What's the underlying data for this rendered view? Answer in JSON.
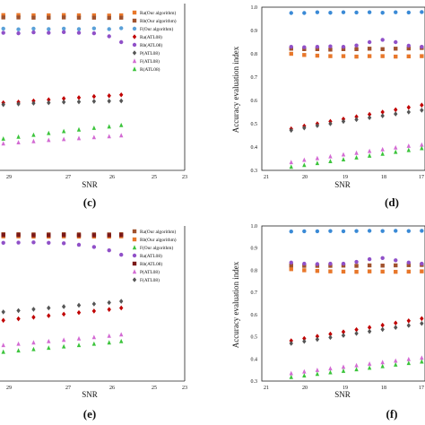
{
  "chart_data": [
    {
      "panel_label": "(c)",
      "type": "scatter",
      "xlabel": "SNR",
      "ylabel": "",
      "xtick_labels": [
        "29",
        "27",
        "26",
        "25",
        "23"
      ],
      "xlim": [
        30,
        23
      ],
      "ylim": [
        0.3,
        1.0
      ],
      "legend_position": "top-right",
      "series": [
        {
          "name": "Ra(Our algorithm)",
          "color": "#e8772a",
          "marker": "square",
          "x": [
            30,
            29.5,
            29,
            28.5,
            28,
            27.5,
            27,
            26.5,
            26,
            25.5,
            25.1
          ],
          "y": [
            0.965,
            0.965,
            0.966,
            0.966,
            0.965,
            0.965,
            0.966,
            0.965,
            0.965,
            0.964,
            0.965
          ]
        },
        {
          "name": "Rb(Our algorithm)",
          "color": "#a0522d",
          "marker": "square",
          "x": [
            30,
            29.5,
            29,
            28.5,
            28,
            27.5,
            27,
            26.5,
            26,
            25.5,
            25.1
          ],
          "y": [
            0.955,
            0.955,
            0.956,
            0.956,
            0.955,
            0.955,
            0.956,
            0.955,
            0.955,
            0.954,
            0.955
          ]
        },
        {
          "name": "F(Our algorithm)",
          "color": "#5aa0d8",
          "marker": "circle",
          "x": [
            30,
            29.5,
            29,
            28.5,
            28,
            27.5,
            27,
            26.5,
            26,
            25.5,
            25.1
          ],
          "y": [
            0.905,
            0.905,
            0.908,
            0.905,
            0.908,
            0.906,
            0.908,
            0.906,
            0.909,
            0.906,
            0.91
          ]
        },
        {
          "name": "Ra(ATL08)",
          "color": "#c00000",
          "marker": "diamond",
          "x": [
            30,
            29.5,
            29,
            28.5,
            28,
            27.5,
            27,
            26.5,
            26,
            25.5,
            25.1
          ],
          "y": [
            0.58,
            0.585,
            0.59,
            0.593,
            0.598,
            0.603,
            0.608,
            0.612,
            0.617,
            0.62,
            0.624
          ]
        },
        {
          "name": "Rb(ATL08)",
          "color": "#9050c8",
          "marker": "circle",
          "x": [
            30,
            29.5,
            29,
            28.5,
            28,
            27.5,
            27,
            26.5,
            26,
            25.5,
            25.1
          ],
          "y": [
            0.885,
            0.887,
            0.89,
            0.888,
            0.892,
            0.89,
            0.893,
            0.89,
            0.888,
            0.875,
            0.85
          ]
        },
        {
          "name": "P(ATL08)",
          "color": "#555555",
          "marker": "diamond",
          "x": [
            30,
            29.5,
            29,
            28.5,
            28,
            27.5,
            27,
            26.5,
            26,
            25.5,
            25.1
          ],
          "y": [
            0.575,
            0.578,
            0.582,
            0.585,
            0.588,
            0.59,
            0.593,
            0.594,
            0.596,
            0.597,
            0.598
          ]
        },
        {
          "name": "F(ATL08)",
          "color": "#d36bd3",
          "marker": "triangle",
          "x": [
            30,
            29.5,
            29,
            28.5,
            28,
            27.5,
            27,
            26.5,
            26,
            25.5,
            25.1
          ],
          "y": [
            0.405,
            0.41,
            0.415,
            0.42,
            0.425,
            0.43,
            0.434,
            0.438,
            0.442,
            0.446,
            0.45
          ]
        },
        {
          "name": "R(ATL08)",
          "color": "#3cc43c",
          "marker": "triangle",
          "x": [
            30,
            29.5,
            29,
            28.5,
            28,
            27.5,
            27,
            26.5,
            26,
            25.5,
            25.1
          ],
          "y": [
            0.42,
            0.428,
            0.436,
            0.444,
            0.452,
            0.46,
            0.468,
            0.475,
            0.482,
            0.488,
            0.494
          ]
        }
      ]
    },
    {
      "panel_label": "(d)",
      "type": "scatter",
      "xlabel": "SNR",
      "ylabel": "Accuracy evaluation index",
      "xtick_labels": [
        "21",
        "20",
        "19",
        "18",
        "17"
      ],
      "ytick_labels": [
        "1.0",
        "0.9",
        "0.8",
        "0.7",
        "0.6",
        "0.5",
        "0.4",
        "0.3"
      ],
      "xlim": [
        21.5,
        16.5
      ],
      "ylim": [
        0.3,
        1.0
      ],
      "legend_position": "",
      "series": [
        {
          "name": "",
          "color": "#3a8ad6",
          "marker": "circle",
          "x": [
            20.6,
            20.2,
            19.8,
            19.4,
            19.0,
            18.6,
            18.2,
            17.8,
            17.4,
            17.0,
            16.6
          ],
          "y": [
            0.975,
            0.975,
            0.978,
            0.976,
            0.978,
            0.977,
            0.978,
            0.976,
            0.978,
            0.977,
            0.979
          ]
        },
        {
          "name": "",
          "color": "#e8772a",
          "marker": "square",
          "x": [
            20.6,
            20.2,
            19.8,
            19.4,
            19.0,
            18.6,
            18.2,
            17.8,
            17.4,
            17.0,
            16.6
          ],
          "y": [
            0.8,
            0.795,
            0.792,
            0.79,
            0.79,
            0.788,
            0.79,
            0.79,
            0.788,
            0.789,
            0.79
          ]
        },
        {
          "name": "",
          "color": "#a0522d",
          "marker": "square",
          "x": [
            20.6,
            20.2,
            19.8,
            19.4,
            19.0,
            18.6,
            18.2,
            17.8,
            17.4,
            17.0,
            16.6
          ],
          "y": [
            0.822,
            0.82,
            0.82,
            0.818,
            0.82,
            0.82,
            0.822,
            0.82,
            0.822,
            0.823,
            0.825
          ]
        },
        {
          "name": "",
          "color": "#9050c8",
          "marker": "circle",
          "x": [
            20.6,
            20.2,
            19.8,
            19.4,
            19.0,
            18.6,
            18.2,
            17.8,
            17.4,
            17.0,
            16.6
          ],
          "y": [
            0.83,
            0.828,
            0.83,
            0.832,
            0.83,
            0.836,
            0.85,
            0.86,
            0.85,
            0.835,
            0.83
          ]
        },
        {
          "name": "",
          "color": "#c00000",
          "marker": "diamond",
          "x": [
            20.6,
            20.2,
            19.8,
            19.4,
            19.0,
            18.6,
            18.2,
            17.8,
            17.4,
            17.0,
            16.6
          ],
          "y": [
            0.478,
            0.49,
            0.5,
            0.51,
            0.52,
            0.53,
            0.54,
            0.55,
            0.56,
            0.57,
            0.58
          ]
        },
        {
          "name": "",
          "color": "#555555",
          "marker": "diamond",
          "x": [
            20.6,
            20.2,
            19.8,
            19.4,
            19.0,
            18.6,
            18.2,
            17.8,
            17.4,
            17.0,
            16.6
          ],
          "y": [
            0.472,
            0.482,
            0.492,
            0.5,
            0.51,
            0.518,
            0.526,
            0.534,
            0.542,
            0.55,
            0.558
          ]
        },
        {
          "name": "",
          "color": "#d36bd3",
          "marker": "triangle",
          "x": [
            20.6,
            20.2,
            19.8,
            19.4,
            19.0,
            18.6,
            18.2,
            17.8,
            17.4,
            17.0,
            16.6
          ],
          "y": [
            0.335,
            0.345,
            0.352,
            0.36,
            0.368,
            0.375,
            0.383,
            0.39,
            0.398,
            0.405,
            0.41
          ]
        },
        {
          "name": "",
          "color": "#3cc43c",
          "marker": "triangle",
          "x": [
            20.6,
            20.2,
            19.8,
            19.4,
            19.0,
            18.6,
            18.2,
            17.8,
            17.4,
            17.0,
            16.6
          ],
          "y": [
            0.315,
            0.323,
            0.331,
            0.339,
            0.347,
            0.355,
            0.363,
            0.371,
            0.379,
            0.387,
            0.395
          ]
        }
      ]
    },
    {
      "panel_label": "(e)",
      "type": "scatter",
      "xlabel": "SNR",
      "ylabel": "",
      "xtick_labels": [
        "29",
        "27",
        "26",
        "25",
        "23"
      ],
      "xlim": [
        30,
        23
      ],
      "ylim": [
        0.3,
        1.0
      ],
      "legend_position": "top-right",
      "series": [
        {
          "name": "Ra(Our algorithm)",
          "color": "#a0522d",
          "marker": "square",
          "x": [
            30,
            29.5,
            29,
            28.5,
            28,
            27.5,
            27,
            26.5,
            26,
            25.5,
            25.1
          ],
          "y": [
            0.962,
            0.962,
            0.963,
            0.963,
            0.962,
            0.962,
            0.963,
            0.962,
            0.962,
            0.962,
            0.963
          ]
        },
        {
          "name": "Rb(Our algorithm)",
          "color": "#e8772a",
          "marker": "square",
          "x": [
            30,
            29.5,
            29,
            28.5,
            28,
            27.5,
            27,
            26.5,
            26,
            25.5,
            25.1
          ],
          "y": [
            0.952,
            0.952,
            0.953,
            0.953,
            0.952,
            0.952,
            0.953,
            0.952,
            0.952,
            0.952,
            0.953
          ]
        },
        {
          "name": "F(Our algorithm)",
          "color": "#3cc43c",
          "marker": "triangle",
          "x": [
            30,
            29.5,
            29,
            28.5,
            28,
            27.5,
            27,
            26.5,
            26,
            25.5,
            25.1
          ],
          "y": [
            0.42,
            0.426,
            0.432,
            0.438,
            0.444,
            0.45,
            0.456,
            0.462,
            0.468,
            0.474,
            0.48
          ]
        },
        {
          "name": "Ra(ATL08)",
          "color": "#9050c8",
          "marker": "circle",
          "x": [
            30,
            29.5,
            29,
            28.5,
            28,
            27.5,
            27,
            26.5,
            26,
            25.5,
            25.1
          ],
          "y": [
            0.92,
            0.922,
            0.924,
            0.925,
            0.926,
            0.924,
            0.922,
            0.915,
            0.905,
            0.89,
            0.87
          ]
        },
        {
          "name": "Rb(ATL08)",
          "color": "#7a1818",
          "marker": "square",
          "x": [
            30,
            29.5,
            29,
            28.5,
            28,
            27.5,
            27,
            26.5,
            26,
            25.5,
            25.1
          ],
          "y": [
            0.958,
            0.958,
            0.959,
            0.959,
            0.958,
            0.958,
            0.959,
            0.958,
            0.958,
            0.958,
            0.959
          ]
        },
        {
          "name": "P(ATL08)",
          "color": "#d36bd3",
          "marker": "triangle",
          "x": [
            30,
            29.5,
            29,
            28.5,
            28,
            27.5,
            27,
            26.5,
            26,
            25.5,
            25.1
          ],
          "y": [
            0.45,
            0.456,
            0.462,
            0.468,
            0.474,
            0.48,
            0.486,
            0.492,
            0.498,
            0.504,
            0.51
          ]
        },
        {
          "name": "F(ATL08)",
          "color": "#555555",
          "marker": "diamond",
          "x": [
            30,
            29.5,
            29,
            28.5,
            28,
            27.5,
            27,
            26.5,
            26,
            25.5,
            25.1
          ],
          "y": [
            0.6,
            0.606,
            0.612,
            0.618,
            0.624,
            0.63,
            0.636,
            0.642,
            0.648,
            0.654,
            0.66
          ]
        },
        {
          "name": "",
          "color": "#c00000",
          "marker": "diamond",
          "x": [
            30,
            29.5,
            29,
            28.5,
            28,
            27.5,
            27,
            26.5,
            26,
            25.5,
            25.1
          ],
          "y": [
            0.56,
            0.567,
            0.574,
            0.581,
            0.588,
            0.595,
            0.602,
            0.609,
            0.616,
            0.623,
            0.63
          ]
        }
      ]
    },
    {
      "panel_label": "(f)",
      "type": "scatter",
      "xlabel": "SNR",
      "ylabel": "Accuracy evaluation index",
      "xtick_labels": [
        "21",
        "20",
        "19",
        "18",
        "17"
      ],
      "ytick_labels": [
        "1.0",
        "0.9",
        "0.8",
        "0.7",
        "0.6",
        "0.5",
        "0.4",
        "0.3"
      ],
      "xlim": [
        21.5,
        16.5
      ],
      "ylim": [
        0.3,
        1.0
      ],
      "legend_position": "",
      "series": [
        {
          "name": "",
          "color": "#3a8ad6",
          "marker": "circle",
          "x": [
            20.6,
            20.2,
            19.8,
            19.4,
            19.0,
            18.6,
            18.2,
            17.8,
            17.4,
            17.0,
            16.6
          ],
          "y": [
            0.975,
            0.976,
            0.976,
            0.977,
            0.976,
            0.977,
            0.978,
            0.977,
            0.978,
            0.977,
            0.978
          ]
        },
        {
          "name": "",
          "color": "#e8772a",
          "marker": "square",
          "x": [
            20.6,
            20.2,
            19.8,
            19.4,
            19.0,
            18.6,
            18.2,
            17.8,
            17.4,
            17.0,
            16.6
          ],
          "y": [
            0.805,
            0.8,
            0.797,
            0.795,
            0.794,
            0.793,
            0.795,
            0.794,
            0.793,
            0.794,
            0.795
          ]
        },
        {
          "name": "",
          "color": "#a0522d",
          "marker": "square",
          "x": [
            20.6,
            20.2,
            19.8,
            19.4,
            19.0,
            18.6,
            18.2,
            17.8,
            17.4,
            17.0,
            16.6
          ],
          "y": [
            0.822,
            0.82,
            0.82,
            0.82,
            0.821,
            0.82,
            0.822,
            0.821,
            0.822,
            0.823,
            0.824
          ]
        },
        {
          "name": "",
          "color": "#9050c8",
          "marker": "circle",
          "x": [
            20.6,
            20.2,
            19.8,
            19.4,
            19.0,
            18.6,
            18.2,
            17.8,
            17.4,
            17.0,
            16.6
          ],
          "y": [
            0.835,
            0.83,
            0.828,
            0.83,
            0.83,
            0.838,
            0.85,
            0.855,
            0.845,
            0.835,
            0.83
          ]
        },
        {
          "name": "",
          "color": "#c00000",
          "marker": "diamond",
          "x": [
            20.6,
            20.2,
            19.8,
            19.4,
            19.0,
            18.6,
            18.2,
            17.8,
            17.4,
            17.0,
            16.6
          ],
          "y": [
            0.482,
            0.492,
            0.502,
            0.512,
            0.522,
            0.532,
            0.542,
            0.552,
            0.562,
            0.572,
            0.582
          ]
        },
        {
          "name": "",
          "color": "#555555",
          "marker": "diamond",
          "x": [
            20.6,
            20.2,
            19.8,
            19.4,
            19.0,
            18.6,
            18.2,
            17.8,
            17.4,
            17.0,
            16.6
          ],
          "y": [
            0.47,
            0.479,
            0.488,
            0.497,
            0.506,
            0.515,
            0.524,
            0.533,
            0.542,
            0.551,
            0.56
          ]
        },
        {
          "name": "",
          "color": "#d36bd3",
          "marker": "triangle",
          "x": [
            20.6,
            20.2,
            19.8,
            19.4,
            19.0,
            18.6,
            18.2,
            17.8,
            17.4,
            17.0,
            16.6
          ],
          "y": [
            0.335,
            0.343,
            0.35,
            0.357,
            0.364,
            0.371,
            0.378,
            0.385,
            0.392,
            0.399,
            0.405
          ]
        },
        {
          "name": "",
          "color": "#3cc43c",
          "marker": "triangle",
          "x": [
            20.6,
            20.2,
            19.8,
            19.4,
            19.0,
            18.6,
            18.2,
            17.8,
            17.4,
            17.0,
            16.6
          ],
          "y": [
            0.318,
            0.325,
            0.332,
            0.339,
            0.346,
            0.353,
            0.36,
            0.367,
            0.374,
            0.381,
            0.388
          ]
        }
      ]
    }
  ]
}
